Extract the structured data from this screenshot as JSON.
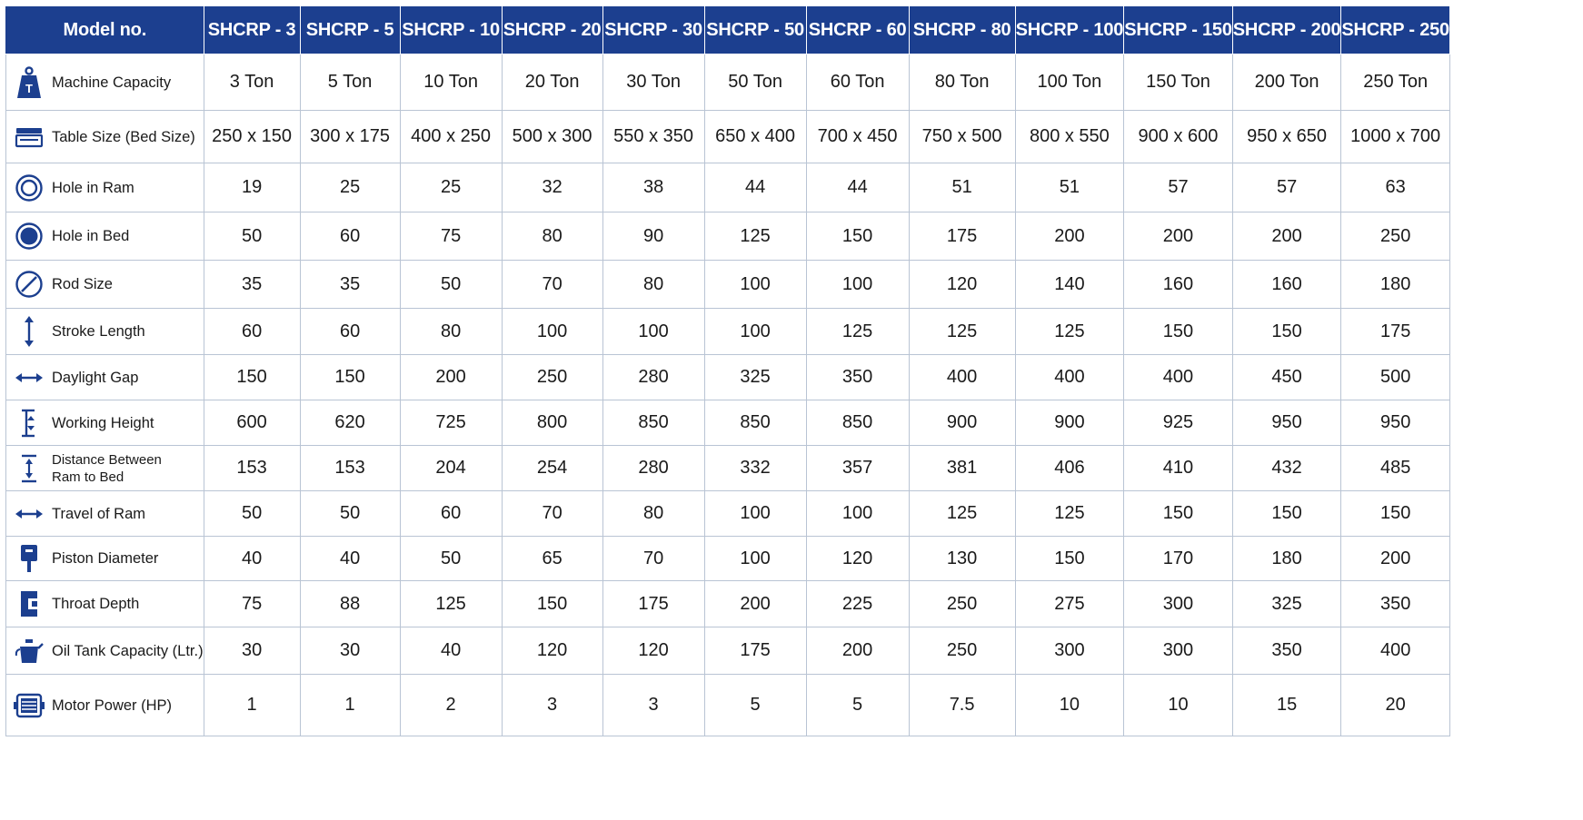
{
  "header": {
    "label": "Model no.",
    "models": [
      "SHCRP - 3",
      "SHCRP - 5",
      "SHCRP - 10",
      "SHCRP - 20",
      "SHCRP - 30",
      "SHCRP - 50",
      "SHCRP - 60",
      "SHCRP - 80",
      "SHCRP - 100",
      "SHCRP - 150",
      "SHCRP - 200",
      "SHCRP - 250"
    ]
  },
  "colors": {
    "header_bg": "#1c3f8f",
    "icon": "#1c3f8f",
    "grid": "#b9c4d4"
  },
  "rows": [
    {
      "label": "Machine Capacity",
      "icon": "weight-icon",
      "values": [
        "3 Ton",
        "5 Ton",
        "10 Ton",
        "20 Ton",
        "30 Ton",
        "50 Ton",
        "60 Ton",
        "80 Ton",
        "100 Ton",
        "150 Ton",
        "200 Ton",
        "250 Ton"
      ]
    },
    {
      "label": "Table Size (Bed Size)",
      "icon": "table-bed-icon",
      "values": [
        "250 x 150",
        "300 x 175",
        "400 x 250",
        "500 x 300",
        "550 x 350",
        "650 x 400",
        "700 x 450",
        "750 x 500",
        "800 x 550",
        "900 x 600",
        "950 x 650",
        "1000 x 700"
      ]
    },
    {
      "label": "Hole in Ram",
      "icon": "ring-icon",
      "values": [
        "19",
        "25",
        "25",
        "32",
        "38",
        "44",
        "44",
        "51",
        "51",
        "57",
        "57",
        "63"
      ]
    },
    {
      "label": "Hole in Bed",
      "icon": "filled-circle-icon",
      "values": [
        "50",
        "60",
        "75",
        "80",
        "90",
        "125",
        "150",
        "175",
        "200",
        "200",
        "200",
        "250"
      ]
    },
    {
      "label": "Rod Size",
      "icon": "diameter-icon",
      "values": [
        "35",
        "35",
        "50",
        "70",
        "80",
        "100",
        "100",
        "120",
        "140",
        "160",
        "160",
        "180"
      ]
    },
    {
      "label": "Stroke Length",
      "icon": "vertical-arrow-icon",
      "values": [
        "60",
        "60",
        "80",
        "100",
        "100",
        "100",
        "125",
        "125",
        "125",
        "150",
        "150",
        "175"
      ]
    },
    {
      "label": "Daylight Gap",
      "icon": "horizontal-arrow-icon",
      "values": [
        "150",
        "150",
        "200",
        "250",
        "280",
        "325",
        "350",
        "400",
        "400",
        "400",
        "450",
        "500"
      ]
    },
    {
      "label": "Working Height",
      "icon": "height-bracket-icon",
      "values": [
        "600",
        "620",
        "725",
        "800",
        "850",
        "850",
        "850",
        "900",
        "900",
        "925",
        "950",
        "950"
      ]
    },
    {
      "label1": "Distance Between",
      "label2": "Ram to Bed",
      "icon": "distance-icon",
      "values": [
        "153",
        "153",
        "204",
        "254",
        "280",
        "332",
        "357",
        "381",
        "406",
        "410",
        "432",
        "485"
      ]
    },
    {
      "label": "Travel of Ram",
      "icon": "travel-arrow-icon",
      "values": [
        "50",
        "50",
        "60",
        "70",
        "80",
        "100",
        "100",
        "125",
        "125",
        "150",
        "150",
        "150"
      ]
    },
    {
      "label": "Piston Diameter",
      "icon": "piston-icon",
      "values": [
        "40",
        "40",
        "50",
        "65",
        "70",
        "100",
        "120",
        "130",
        "150",
        "170",
        "180",
        "200"
      ]
    },
    {
      "label": "Throat Depth",
      "icon": "throat-icon",
      "values": [
        "75",
        "88",
        "125",
        "150",
        "175",
        "200",
        "225",
        "250",
        "275",
        "300",
        "325",
        "350"
      ]
    },
    {
      "label": "Oil Tank Capacity (Ltr.)",
      "icon": "oil-can-icon",
      "values": [
        "30",
        "30",
        "40",
        "120",
        "120",
        "175",
        "200",
        "250",
        "300",
        "300",
        "350",
        "400"
      ]
    },
    {
      "label": "Motor Power (HP)",
      "icon": "motor-icon",
      "values": [
        "1",
        "1",
        "2",
        "3",
        "3",
        "5",
        "5",
        "7.5",
        "10",
        "10",
        "15",
        "20"
      ]
    }
  ]
}
